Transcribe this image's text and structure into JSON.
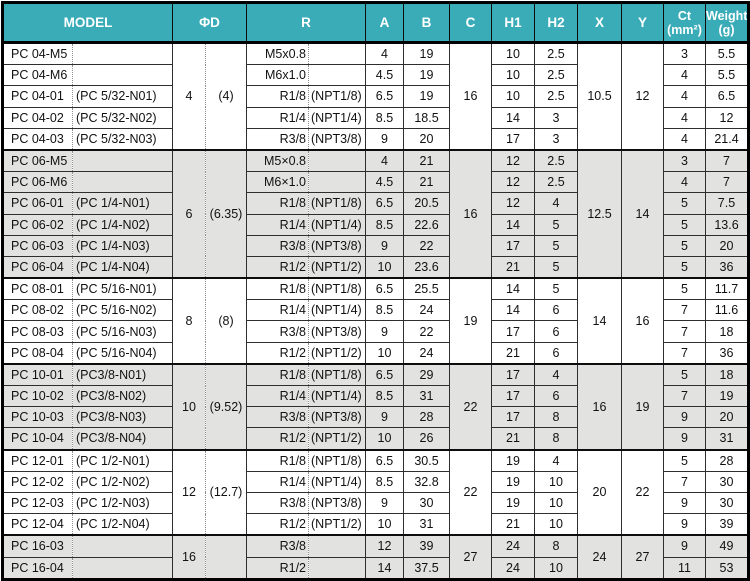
{
  "colors": {
    "header_bg": "#3aacb8",
    "header_text": "#ffffff",
    "shaded_row_bg": "#e2e2e0",
    "row_bg": "#ffffff",
    "border": "#000000"
  },
  "table": {
    "headers": {
      "model": "MODEL",
      "phi_d": "ΦD",
      "r": "R",
      "a": "A",
      "b": "B",
      "c": "C",
      "h1": "H1",
      "h2": "H2",
      "x": "X",
      "y": "Y",
      "ct_line1": "Ct",
      "ct_line2": "(mm²)",
      "weight_line1": "Weight",
      "weight_line2": "(g)"
    },
    "groups": [
      {
        "phi_d": "4",
        "phi_d_alt": "(4)",
        "c": "16",
        "x": "10.5",
        "y": "12",
        "shaded": false,
        "rows": [
          {
            "model": "PC 04-M5",
            "model_alt": "",
            "r": "M5x0.8",
            "r_alt": "",
            "a": "4",
            "b": "19",
            "h1": "10",
            "h2": "2.5",
            "ct": "3",
            "weight": "5.5"
          },
          {
            "model": "PC 04-M6",
            "model_alt": "",
            "r": "M6x1.0",
            "r_alt": "",
            "a": "4.5",
            "b": "19",
            "h1": "10",
            "h2": "2.5",
            "ct": "4",
            "weight": "5.5"
          },
          {
            "model": "PC 04-01",
            "model_alt": "(PC 5/32-N01)",
            "r": "R1/8",
            "r_alt": "(NPT1/8)",
            "a": "6.5",
            "b": "19",
            "h1": "10",
            "h2": "2.5",
            "ct": "4",
            "weight": "6.5"
          },
          {
            "model": "PC 04-02",
            "model_alt": "(PC 5/32-N02)",
            "r": "R1/4",
            "r_alt": "(NPT1/4)",
            "a": "8.5",
            "b": "18.5",
            "h1": "14",
            "h2": "3",
            "ct": "4",
            "weight": "12"
          },
          {
            "model": "PC 04-03",
            "model_alt": "(PC 5/32-N03)",
            "r": "R3/8",
            "r_alt": "(NPT3/8)",
            "a": "9",
            "b": "20",
            "h1": "17",
            "h2": "3",
            "ct": "4",
            "weight": "21.4"
          }
        ]
      },
      {
        "phi_d": "6",
        "phi_d_alt": "(6.35)",
        "c": "16",
        "x": "12.5",
        "y": "14",
        "shaded": true,
        "rows": [
          {
            "model": "PC 06-M5",
            "model_alt": "",
            "r": "M5×0.8",
            "r_alt": "",
            "a": "4",
            "b": "21",
            "h1": "12",
            "h2": "2.5",
            "ct": "3",
            "weight": "7"
          },
          {
            "model": "PC 06-M6",
            "model_alt": "",
            "r": "M6×1.0",
            "r_alt": "",
            "a": "4.5",
            "b": "21",
            "h1": "12",
            "h2": "2.5",
            "ct": "4",
            "weight": "7"
          },
          {
            "model": "PC 06-01",
            "model_alt": "(PC 1/4-N01)",
            "r": "R1/8",
            "r_alt": "(NPT1/8)",
            "a": "6.5",
            "b": "20.5",
            "h1": "12",
            "h2": "4",
            "ct": "5",
            "weight": "7.5"
          },
          {
            "model": "PC 06-02",
            "model_alt": "(PC 1/4-N02)",
            "r": "R1/4",
            "r_alt": "(NPT1/4)",
            "a": "8.5",
            "b": "22.6",
            "h1": "14",
            "h2": "5",
            "ct": "5",
            "weight": "13.6"
          },
          {
            "model": "PC 06-03",
            "model_alt": "(PC 1/4-N03)",
            "r": "R3/8",
            "r_alt": "(NPT3/8)",
            "a": "9",
            "b": "22",
            "h1": "17",
            "h2": "5",
            "ct": "5",
            "weight": "20"
          },
          {
            "model": "PC 06-04",
            "model_alt": "(PC 1/4-N04)",
            "r": "R1/2",
            "r_alt": "(NPT1/2)",
            "a": "10",
            "b": "23.6",
            "h1": "21",
            "h2": "5",
            "ct": "5",
            "weight": "36"
          }
        ]
      },
      {
        "phi_d": "8",
        "phi_d_alt": "(8)",
        "c": "19",
        "x": "14",
        "y": "16",
        "shaded": false,
        "rows": [
          {
            "model": "PC 08-01",
            "model_alt": "(PC 5/16-N01)",
            "r": "R1/8",
            "r_alt": "(NPT1/8)",
            "a": "6.5",
            "b": "25.5",
            "h1": "14",
            "h2": "5",
            "ct": "5",
            "weight": "11.7"
          },
          {
            "model": "PC 08-02",
            "model_alt": "(PC 5/16-N02)",
            "r": "R1/4",
            "r_alt": "(NPT1/4)",
            "a": "8.5",
            "b": "24",
            "h1": "14",
            "h2": "6",
            "ct": "7",
            "weight": "11.6"
          },
          {
            "model": "PC 08-03",
            "model_alt": "(PC 5/16-N03)",
            "r": "R3/8",
            "r_alt": "(NPT3/8)",
            "a": "9",
            "b": "22",
            "h1": "17",
            "h2": "6",
            "ct": "7",
            "weight": "18"
          },
          {
            "model": "PC 08-04",
            "model_alt": "(PC 5/16-N04)",
            "r": "R1/2",
            "r_alt": "(NPT1/2)",
            "a": "10",
            "b": "24",
            "h1": "21",
            "h2": "6",
            "ct": "7",
            "weight": "36"
          }
        ]
      },
      {
        "phi_d": "10",
        "phi_d_alt": "(9.52)",
        "c": "22",
        "x": "16",
        "y": "19",
        "shaded": true,
        "rows": [
          {
            "model": "PC 10-01",
            "model_alt": "(PC3/8-N01)",
            "r": "R1/8",
            "r_alt": "(NPT1/8)",
            "a": "6.5",
            "b": "29",
            "h1": "17",
            "h2": "4",
            "ct": "5",
            "weight": "18"
          },
          {
            "model": "PC 10-02",
            "model_alt": "(PC3/8-N02)",
            "r": "R1/4",
            "r_alt": "(NPT1/4)",
            "a": "8.5",
            "b": "31",
            "h1": "17",
            "h2": "6",
            "ct": "7",
            "weight": "19"
          },
          {
            "model": "PC 10-03",
            "model_alt": "(PC3/8-N03)",
            "r": "R3/8",
            "r_alt": "(NPT3/8)",
            "a": "9",
            "b": "28",
            "h1": "17",
            "h2": "8",
            "ct": "9",
            "weight": "20"
          },
          {
            "model": "PC 10-04",
            "model_alt": "(PC3/8-N04)",
            "r": "R1/2",
            "r_alt": "(NPT1/2)",
            "a": "10",
            "b": "26",
            "h1": "21",
            "h2": "8",
            "ct": "9",
            "weight": "31"
          }
        ]
      },
      {
        "phi_d": "12",
        "phi_d_alt": "(12.7)",
        "c": "22",
        "x": "20",
        "y": "22",
        "shaded": false,
        "rows": [
          {
            "model": "PC 12-01",
            "model_alt": "(PC 1/2-N01)",
            "r": "R1/8",
            "r_alt": "(NPT1/8)",
            "a": "6.5",
            "b": "30.5",
            "h1": "19",
            "h2": "4",
            "ct": "5",
            "weight": "28"
          },
          {
            "model": "PC 12-02",
            "model_alt": "(PC 1/2-N02)",
            "r": "R1/4",
            "r_alt": "(NPT1/4)",
            "a": "8.5",
            "b": "32.8",
            "h1": "19",
            "h2": "10",
            "ct": "7",
            "weight": "30"
          },
          {
            "model": "PC 12-03",
            "model_alt": "(PC 1/2-N03)",
            "r": "R3/8",
            "r_alt": "(NPT3/8)",
            "a": "9",
            "b": "30",
            "h1": "19",
            "h2": "10",
            "ct": "9",
            "weight": "30"
          },
          {
            "model": "PC 12-04",
            "model_alt": "(PC 1/2-N04)",
            "r": "R1/2",
            "r_alt": "(NPT1/2)",
            "a": "10",
            "b": "31",
            "h1": "21",
            "h2": "10",
            "ct": "9",
            "weight": "39"
          }
        ]
      },
      {
        "phi_d": "16",
        "phi_d_alt": "",
        "c": "27",
        "x": "24",
        "y": "27",
        "shaded": true,
        "rows": [
          {
            "model": "PC 16-03",
            "model_alt": "",
            "r": "R3/8",
            "r_alt": "",
            "a": "12",
            "b": "39",
            "h1": "24",
            "h2": "8",
            "ct": "9",
            "weight": "49"
          },
          {
            "model": "PC 16-04",
            "model_alt": "",
            "r": "R1/2",
            "r_alt": "",
            "a": "14",
            "b": "37.5",
            "h1": "24",
            "h2": "10",
            "ct": "11",
            "weight": "53"
          }
        ]
      }
    ]
  }
}
